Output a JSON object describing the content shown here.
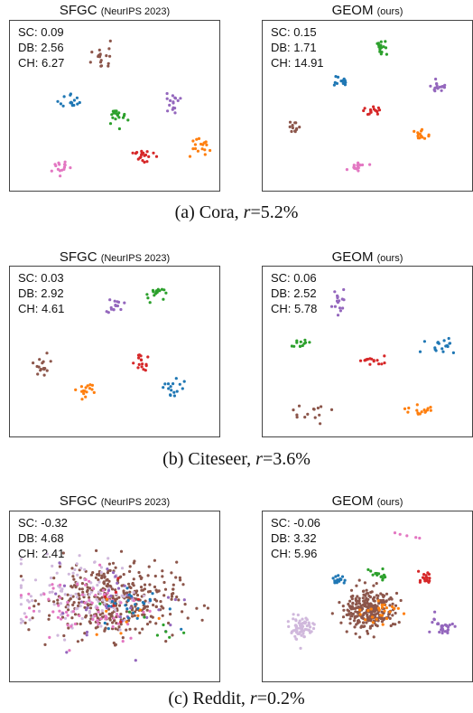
{
  "figure": {
    "rows": [
      {
        "caption": {
          "prefix": "(a) ",
          "dataset": "Cora",
          "sep": ", ",
          "param": "r",
          "value": "=5.2%"
        },
        "panels": [
          {
            "title": "SFGC",
            "subtitle": "(NeurIPS 2023)",
            "metrics": {
              "sc": "SC: 0.09",
              "db": "DB: 2.56",
              "ch": "CH: 6.27"
            }
          },
          {
            "title": "GEOM",
            "subtitle": "(ours)",
            "metrics": {
              "sc": "SC: 0.15",
              "db": "DB: 1.71",
              "ch": "CH: 14.91"
            }
          }
        ]
      },
      {
        "caption": {
          "prefix": "(b) ",
          "dataset": "Citeseer",
          "sep": ", ",
          "param": "r",
          "value": "=3.6%"
        },
        "panels": [
          {
            "title": "SFGC",
            "subtitle": "(NeurIPS 2023)",
            "metrics": {
              "sc": "SC: 0.03",
              "db": "DB: 2.92",
              "ch": "CH: 4.61"
            }
          },
          {
            "title": "GEOM",
            "subtitle": "(ours)",
            "metrics": {
              "sc": "SC: 0.06",
              "db": "DB: 2.52",
              "ch": "CH: 5.78"
            }
          }
        ]
      },
      {
        "caption": {
          "prefix": "(c) ",
          "dataset": "Reddit",
          "sep": ", ",
          "param": "r",
          "value": "=0.2%"
        },
        "panels": [
          {
            "title": "SFGC",
            "subtitle": "(NeurIPS 2023)",
            "metrics": {
              "sc": "SC: -0.32",
              "db": "DB: 4.68",
              "ch": "CH: 2.41"
            }
          },
          {
            "title": "GEOM",
            "subtitle": "(ours)",
            "metrics": {
              "sc": "SC: -0.06",
              "db": "DB: 3.32",
              "ch": "CH: 5.96"
            }
          }
        ]
      }
    ]
  },
  "chart_data": [
    {
      "type": "scatter",
      "title": "SFGC (NeurIPS 2023)",
      "dataset": "Cora",
      "axes_visible": false,
      "clusters": [
        {
          "color": "#8c564b",
          "center": [
            0.42,
            0.82
          ],
          "spread": [
            0.05,
            0.07
          ],
          "n": 18
        },
        {
          "color": "#1f77b4",
          "center": [
            0.28,
            0.53
          ],
          "spread": [
            0.05,
            0.05
          ],
          "n": 16
        },
        {
          "color": "#2ca02c",
          "center": [
            0.51,
            0.44
          ],
          "spread": [
            0.05,
            0.05
          ],
          "n": 18
        },
        {
          "color": "#9467bd",
          "center": [
            0.79,
            0.52
          ],
          "spread": [
            0.05,
            0.05
          ],
          "n": 16
        },
        {
          "color": "#d62728",
          "center": [
            0.64,
            0.18
          ],
          "spread": [
            0.05,
            0.05
          ],
          "n": 20
        },
        {
          "color": "#ff7f0e",
          "center": [
            0.93,
            0.24
          ],
          "spread": [
            0.05,
            0.05
          ],
          "n": 18
        },
        {
          "color": "#e377c2",
          "center": [
            0.22,
            0.11
          ],
          "spread": [
            0.06,
            0.04
          ],
          "n": 16
        }
      ]
    },
    {
      "type": "scatter",
      "title": "GEOM (ours)",
      "dataset": "Cora",
      "axes_visible": false,
      "clusters": [
        {
          "color": "#2ca02c",
          "center": [
            0.56,
            0.88
          ],
          "spread": [
            0.04,
            0.04
          ],
          "n": 16
        },
        {
          "color": "#1f77b4",
          "center": [
            0.36,
            0.66
          ],
          "spread": [
            0.04,
            0.03
          ],
          "n": 14
        },
        {
          "color": "#9467bd",
          "center": [
            0.85,
            0.62
          ],
          "spread": [
            0.04,
            0.03
          ],
          "n": 16
        },
        {
          "color": "#d62728",
          "center": [
            0.52,
            0.47
          ],
          "spread": [
            0.04,
            0.03
          ],
          "n": 16
        },
        {
          "color": "#8c564b",
          "center": [
            0.12,
            0.37
          ],
          "spread": [
            0.03,
            0.04
          ],
          "n": 12
        },
        {
          "color": "#ff7f0e",
          "center": [
            0.77,
            0.32
          ],
          "spread": [
            0.03,
            0.05
          ],
          "n": 14
        },
        {
          "color": "#e377c2",
          "center": [
            0.44,
            0.12
          ],
          "spread": [
            0.05,
            0.03
          ],
          "n": 16
        }
      ]
    },
    {
      "type": "scatter",
      "title": "SFGC (NeurIPS 2023)",
      "dataset": "Citeseer",
      "axes_visible": false,
      "clusters": [
        {
          "color": "#2ca02c",
          "center": [
            0.7,
            0.87
          ],
          "spread": [
            0.05,
            0.06
          ],
          "n": 18
        },
        {
          "color": "#9467bd",
          "center": [
            0.5,
            0.81
          ],
          "spread": [
            0.05,
            0.05
          ],
          "n": 16
        },
        {
          "color": "#8c564b",
          "center": [
            0.12,
            0.42
          ],
          "spread": [
            0.05,
            0.06
          ],
          "n": 16
        },
        {
          "color": "#d62728",
          "center": [
            0.62,
            0.45
          ],
          "spread": [
            0.04,
            0.06
          ],
          "n": 16
        },
        {
          "color": "#ff7f0e",
          "center": [
            0.37,
            0.24
          ],
          "spread": [
            0.05,
            0.06
          ],
          "n": 16
        },
        {
          "color": "#1f77b4",
          "center": [
            0.8,
            0.28
          ],
          "spread": [
            0.06,
            0.05
          ],
          "n": 16
        }
      ]
    },
    {
      "type": "scatter",
      "title": "GEOM (ours)",
      "dataset": "Citeseer",
      "axes_visible": false,
      "clusters": [
        {
          "color": "#9467bd",
          "center": [
            0.35,
            0.82
          ],
          "spread": [
            0.04,
            0.07
          ],
          "n": 16
        },
        {
          "color": "#2ca02c",
          "center": [
            0.16,
            0.56
          ],
          "spread": [
            0.04,
            0.04
          ],
          "n": 12
        },
        {
          "color": "#1f77b4",
          "center": [
            0.86,
            0.55
          ],
          "spread": [
            0.09,
            0.05
          ],
          "n": 18
        },
        {
          "color": "#d62728",
          "center": [
            0.52,
            0.44
          ],
          "spread": [
            0.05,
            0.04
          ],
          "n": 16
        },
        {
          "color": "#8c564b",
          "center": [
            0.2,
            0.13
          ],
          "spread": [
            0.08,
            0.05
          ],
          "n": 14
        },
        {
          "color": "#ff7f0e",
          "center": [
            0.76,
            0.14
          ],
          "spread": [
            0.07,
            0.05
          ],
          "n": 16
        }
      ]
    },
    {
      "type": "scatter",
      "title": "SFGC (NeurIPS 2023)",
      "dataset": "Reddit",
      "axes_visible": false,
      "clusters": [
        {
          "color": "#8c564b",
          "center": [
            0.48,
            0.48
          ],
          "spread": [
            0.3,
            0.22
          ],
          "n": 360
        },
        {
          "color": "#d0b8dc",
          "center": [
            0.3,
            0.52
          ],
          "spread": [
            0.3,
            0.22
          ],
          "n": 110
        },
        {
          "color": "#e377c2",
          "center": [
            0.35,
            0.45
          ],
          "spread": [
            0.3,
            0.22
          ],
          "n": 70
        },
        {
          "color": "#9467bd",
          "center": [
            0.55,
            0.45
          ],
          "spread": [
            0.32,
            0.25
          ],
          "n": 35
        },
        {
          "color": "#1f77b4",
          "center": [
            0.6,
            0.44
          ],
          "spread": [
            0.15,
            0.12
          ],
          "n": 25
        },
        {
          "color": "#2ca02c",
          "center": [
            0.7,
            0.32
          ],
          "spread": [
            0.15,
            0.12
          ],
          "n": 8
        },
        {
          "color": "#ff7f0e",
          "center": [
            0.55,
            0.4
          ],
          "spread": [
            0.2,
            0.15
          ],
          "n": 8
        },
        {
          "color": "#d62728",
          "center": [
            0.5,
            0.48
          ],
          "spread": [
            0.2,
            0.15
          ],
          "n": 6
        }
      ]
    },
    {
      "type": "scatter",
      "title": "GEOM (ours)",
      "dataset": "Reddit",
      "axes_visible": false,
      "clusters": [
        {
          "color": "#8c564b",
          "center": [
            0.5,
            0.42
          ],
          "spread": [
            0.12,
            0.12
          ],
          "n": 280
        },
        {
          "color": "#d0b8dc",
          "center": [
            0.16,
            0.3
          ],
          "spread": [
            0.05,
            0.07
          ],
          "n": 70
        },
        {
          "color": "#9467bd",
          "center": [
            0.88,
            0.31
          ],
          "spread": [
            0.05,
            0.05
          ],
          "n": 30
        },
        {
          "color": "#d62728",
          "center": [
            0.79,
            0.62
          ],
          "spread": [
            0.03,
            0.04
          ],
          "n": 18
        },
        {
          "color": "#2ca02c",
          "center": [
            0.55,
            0.64
          ],
          "spread": [
            0.04,
            0.03
          ],
          "n": 16
        },
        {
          "color": "#1f77b4",
          "center": [
            0.35,
            0.62
          ],
          "spread": [
            0.03,
            0.03
          ],
          "n": 14
        },
        {
          "color": "#ff7f0e",
          "center": [
            0.55,
            0.4
          ],
          "spread": [
            0.1,
            0.1
          ],
          "n": 25
        },
        {
          "color": "#e377c2",
          "center": [
            0.65,
            0.9
          ],
          "spread": [
            0.1,
            0.03
          ],
          "n": 5
        }
      ]
    }
  ]
}
